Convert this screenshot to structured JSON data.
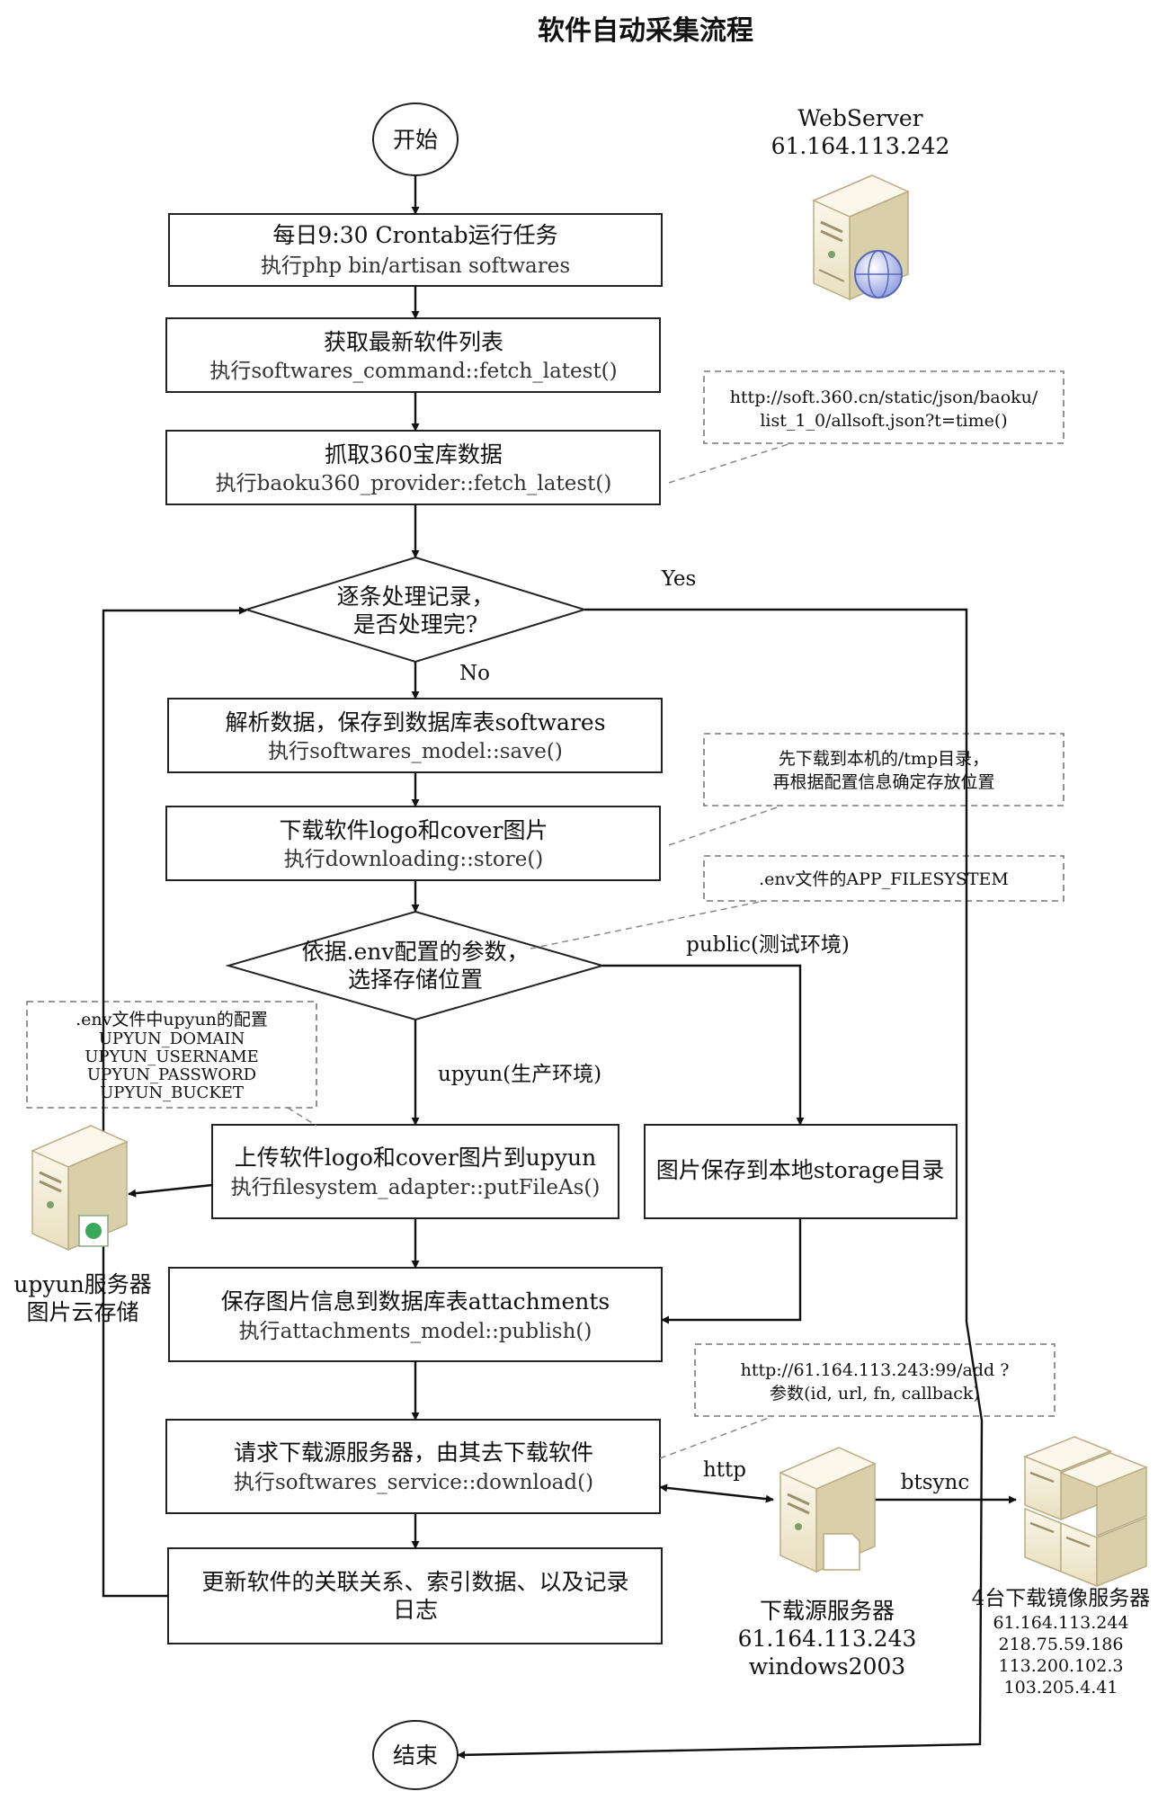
{
  "title": "软件自动采集流程",
  "start": "开始",
  "end": "结束",
  "webserver": {
    "name": "WebServer",
    "ip": "61.164.113.242"
  },
  "steps": {
    "cron": {
      "line1": "每日9:30 Crontab运行任务",
      "line2": "执行php bin/artisan softwares"
    },
    "fetch": {
      "line1": "获取最新软件列表",
      "line2": "执行softwares_command::fetch_latest()"
    },
    "baoku": {
      "line1": "抓取360宝库数据",
      "line2": "执行baoku360_provider::fetch_latest()"
    },
    "parse": {
      "line1": "解析数据，保存到数据库表softwares",
      "line2": "执行softwares_model::save()"
    },
    "download_img": {
      "line1": "下载软件logo和cover图片",
      "line2": "执行downloading::store()"
    },
    "upload": {
      "line1": "上传软件logo和cover图片到upyun",
      "line2": "执行filesystem_adapter::putFileAs()"
    },
    "local": {
      "line1": "图片保存到本地storage目录"
    },
    "attach": {
      "line1": "保存图片信息到数据库表attachments",
      "line2": "执行attachments_model::publish()"
    },
    "request": {
      "line1": "请求下载源服务器，由其去下载软件",
      "line2": "执行softwares_service::download()"
    },
    "update": {
      "line1": "更新软件的关联关系、索引数据、以及记录",
      "line2": "日志"
    }
  },
  "decisions": {
    "loop": {
      "line1": "逐条处理记录，",
      "line2": "是否处理完?"
    },
    "storage": {
      "line1": "依据.env配置的参数，",
      "line2": "选择存储位置"
    }
  },
  "labels": {
    "yes": "Yes",
    "no": "No",
    "public": "public(测试环境)",
    "upyun": "upyun(生产环境)",
    "http": "http",
    "btsync": "btsync"
  },
  "notes": {
    "baoku_url": {
      "line1": "http://soft.360.cn/static/json/baoku/",
      "line2": "list_1_0/allsoft.json?t=time()"
    },
    "tmp": {
      "line1": "先下载到本机的/tmp目录，",
      "line2": "再根据配置信息确定存放位置"
    },
    "env_fs": {
      "line1": ".env文件的APP_FILESYSTEM"
    },
    "upyun_conf": {
      "line1": ".env文件中upyun的配置",
      "line2": "UPYUN_DOMAIN",
      "line3": "UPYUN_USERNAME",
      "line4": "UPYUN_PASSWORD",
      "line5": "UPYUN_BUCKET"
    },
    "add_api": {
      "line1": "http://61.164.113.243:99/add ?",
      "line2": "参数(id, url, fn, callback)"
    }
  },
  "servers": {
    "upyun": {
      "line1": "upyun服务器",
      "line2": "图片云存储"
    },
    "download": {
      "line1": "下载源服务器",
      "line2": "61.164.113.243",
      "line3": "windows2003"
    },
    "mirrors": {
      "line1": "4台下载镜像服务器",
      "ips": [
        "61.164.113.244",
        "218.75.59.186",
        "113.200.102.3",
        "103.205.4.41"
      ]
    }
  },
  "colors": {
    "server_body": "#f3ecd7",
    "server_side": "#d9cfa9",
    "globe": "#6b78c9",
    "upyun_badge": "#3aa85a"
  }
}
